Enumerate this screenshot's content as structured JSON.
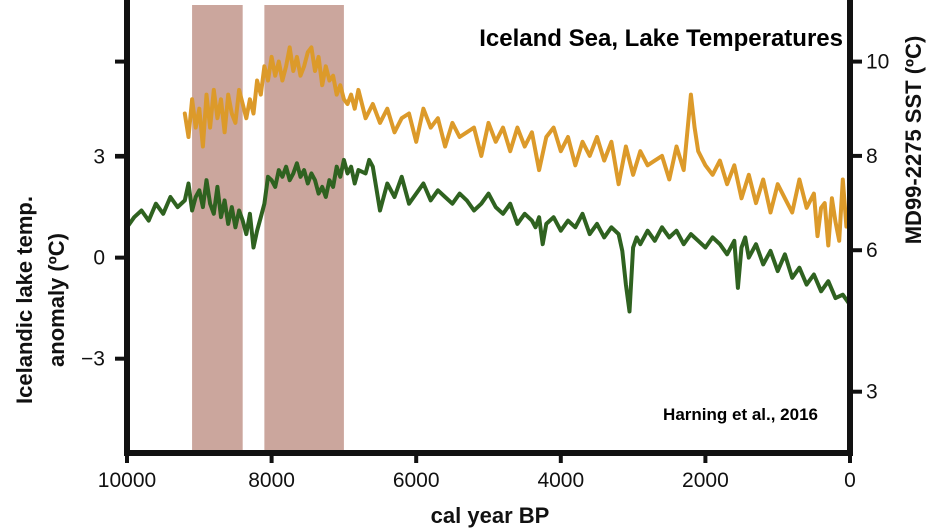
{
  "chart_data": {
    "type": "line",
    "title": "Iceland Sea, Lake Temperatures",
    "annotation": "Harning et al., 2016",
    "xlabel": "cal year BP",
    "ylabel_left_line1": "Icelandic lake temp.",
    "ylabel_left_line2": "anomaly (ºC)",
    "ylabel_right": "MD99-2275 SST (ºC)",
    "xlim": [
      10000,
      0
    ],
    "x_ticks": [
      10000,
      8000,
      6000,
      4000,
      2000,
      0
    ],
    "x_tick_labels": [
      "10000",
      "8000",
      "6000",
      "4000",
      "2000",
      "0"
    ],
    "ylim_left": [
      -5.8,
      7.5
    ],
    "y_left_ticks": [
      3,
      0,
      -3
    ],
    "y_left_tick_labels": [
      "3",
      "0",
      "−3"
    ],
    "ylim_right": [
      1.7,
      11.2
    ],
    "y_right_ticks": [
      10,
      8,
      6,
      3
    ],
    "y_right_tick_labels": [
      "10",
      "8",
      "6",
      "3"
    ],
    "shaded_periods": [
      {
        "start": 9100,
        "end": 8400
      },
      {
        "start": 8100,
        "end": 7000
      }
    ],
    "colors": {
      "sst": "#dc9a2a",
      "lake": "#2f6220",
      "shade": "#a86a5c",
      "shade_opacity": 0.6
    },
    "series": [
      {
        "key": "sst",
        "axis": "right",
        "x": [
          9200,
          9150,
          9100,
          9050,
          9000,
          8950,
          8900,
          8850,
          8800,
          8750,
          8700,
          8650,
          8600,
          8550,
          8500,
          8450,
          8400,
          8350,
          8300,
          8250,
          8200,
          8150,
          8100,
          8050,
          8000,
          7950,
          7900,
          7850,
          7800,
          7750,
          7700,
          7650,
          7600,
          7550,
          7500,
          7450,
          7400,
          7350,
          7300,
          7250,
          7200,
          7150,
          7100,
          7050,
          7000,
          6950,
          6900,
          6850,
          6800,
          6700,
          6600,
          6500,
          6400,
          6300,
          6200,
          6100,
          6000,
          5900,
          5800,
          5700,
          5600,
          5500,
          5400,
          5300,
          5200,
          5100,
          5000,
          4900,
          4800,
          4700,
          4600,
          4500,
          4400,
          4300,
          4200,
          4100,
          4000,
          3900,
          3800,
          3700,
          3600,
          3500,
          3400,
          3300,
          3200,
          3100,
          3000,
          2900,
          2800,
          2700,
          2600,
          2500,
          2400,
          2300,
          2250,
          2200,
          2150,
          2100,
          2000,
          1900,
          1800,
          1700,
          1600,
          1500,
          1400,
          1300,
          1200,
          1100,
          1000,
          900,
          800,
          700,
          600,
          500,
          450,
          400,
          350,
          300,
          250,
          200,
          150,
          100,
          50,
          0
        ],
        "y": [
          8.9,
          8.4,
          9.2,
          8.6,
          9.0,
          8.2,
          9.3,
          8.6,
          9.4,
          8.8,
          9.2,
          8.5,
          9.3,
          8.9,
          8.7,
          9.4,
          9.1,
          8.8,
          9.2,
          8.9,
          9.6,
          9.3,
          9.9,
          9.6,
          10.1,
          9.7,
          10.0,
          9.6,
          9.9,
          10.3,
          9.8,
          10.1,
          9.7,
          9.9,
          10.2,
          10.3,
          9.8,
          10.1,
          9.5,
          9.9,
          9.6,
          9.7,
          9.3,
          9.5,
          9.2,
          9.1,
          9.3,
          9.0,
          9.4,
          8.8,
          9.1,
          8.7,
          9.0,
          8.5,
          8.8,
          8.9,
          8.3,
          9.0,
          8.6,
          8.8,
          8.2,
          8.7,
          8.4,
          8.5,
          8.6,
          8.0,
          8.7,
          8.3,
          8.6,
          8.1,
          8.6,
          8.2,
          8.5,
          7.7,
          8.4,
          8.6,
          8.1,
          8.4,
          7.8,
          8.3,
          8.0,
          8.4,
          7.9,
          8.3,
          7.4,
          8.2,
          7.6,
          8.1,
          7.8,
          7.9,
          8.0,
          7.5,
          8.2,
          7.7,
          8.5,
          9.3,
          8.6,
          8.1,
          7.8,
          7.6,
          7.9,
          7.4,
          7.8,
          7.1,
          7.6,
          7.0,
          7.5,
          6.8,
          7.4,
          7.1,
          6.8,
          7.5,
          6.9,
          7.2,
          6.3,
          6.9,
          7.0,
          6.1,
          7.1,
          6.6,
          6.2,
          7.5,
          6.5,
          6.8
        ],
        "name": ""
      },
      {
        "key": "lake",
        "axis": "left",
        "x": [
          10000,
          9900,
          9800,
          9700,
          9600,
          9500,
          9400,
          9300,
          9200,
          9150,
          9100,
          9050,
          9000,
          8950,
          8900,
          8850,
          8800,
          8750,
          8700,
          8650,
          8600,
          8550,
          8500,
          8450,
          8400,
          8350,
          8300,
          8250,
          8200,
          8150,
          8100,
          8050,
          8000,
          7950,
          7900,
          7850,
          7800,
          7750,
          7700,
          7650,
          7600,
          7550,
          7500,
          7450,
          7400,
          7350,
          7300,
          7250,
          7200,
          7150,
          7100,
          7050,
          7000,
          6950,
          6900,
          6850,
          6800,
          6700,
          6650,
          6600,
          6500,
          6400,
          6300,
          6200,
          6100,
          6000,
          5900,
          5800,
          5700,
          5600,
          5500,
          5400,
          5300,
          5200,
          5100,
          5000,
          4900,
          4800,
          4700,
          4600,
          4500,
          4400,
          4350,
          4300,
          4250,
          4200,
          4100,
          4000,
          3900,
          3800,
          3700,
          3600,
          3500,
          3400,
          3300,
          3200,
          3150,
          3100,
          3050,
          3000,
          2950,
          2900,
          2800,
          2700,
          2600,
          2500,
          2400,
          2300,
          2200,
          2100,
          2000,
          1900,
          1800,
          1700,
          1600,
          1550,
          1500,
          1450,
          1400,
          1300,
          1200,
          1100,
          1000,
          900,
          800,
          700,
          600,
          500,
          400,
          300,
          200,
          100,
          0
        ],
        "y": [
          0.9,
          1.2,
          1.4,
          1.1,
          1.6,
          1.3,
          1.8,
          1.5,
          1.7,
          2.2,
          1.4,
          1.8,
          2.0,
          1.5,
          2.3,
          1.6,
          1.3,
          2.1,
          1.2,
          1.7,
          1.0,
          1.5,
          0.9,
          1.4,
          1.1,
          0.7,
          1.3,
          0.3,
          0.8,
          1.2,
          1.6,
          2.4,
          2.3,
          2.1,
          2.6,
          2.4,
          2.7,
          2.3,
          2.5,
          2.8,
          2.4,
          2.6,
          2.2,
          2.5,
          2.3,
          1.9,
          2.1,
          1.8,
          2.3,
          2.1,
          2.7,
          2.4,
          2.9,
          2.5,
          2.7,
          2.2,
          2.6,
          2.5,
          2.9,
          2.7,
          1.4,
          2.2,
          1.8,
          2.4,
          1.6,
          1.9,
          2.2,
          1.7,
          2.0,
          1.8,
          1.6,
          1.9,
          1.7,
          1.4,
          1.6,
          1.9,
          1.5,
          1.3,
          1.6,
          1.0,
          1.3,
          1.1,
          0.9,
          1.2,
          0.4,
          1.0,
          1.2,
          0.8,
          1.1,
          0.9,
          1.3,
          0.7,
          1.0,
          0.6,
          0.9,
          0.7,
          0.2,
          -0.8,
          -1.6,
          0.3,
          0.6,
          0.4,
          0.8,
          0.5,
          0.9,
          0.6,
          0.8,
          0.4,
          0.7,
          0.5,
          0.3,
          0.6,
          0.4,
          0.1,
          0.5,
          -0.9,
          0.3,
          0.6,
          0.0,
          0.4,
          -0.2,
          0.2,
          -0.4,
          0.1,
          -0.6,
          -0.3,
          -0.8,
          -0.5,
          -1.0,
          -0.7,
          -1.2,
          -1.1,
          -1.4
        ],
        "name": ""
      }
    ]
  }
}
